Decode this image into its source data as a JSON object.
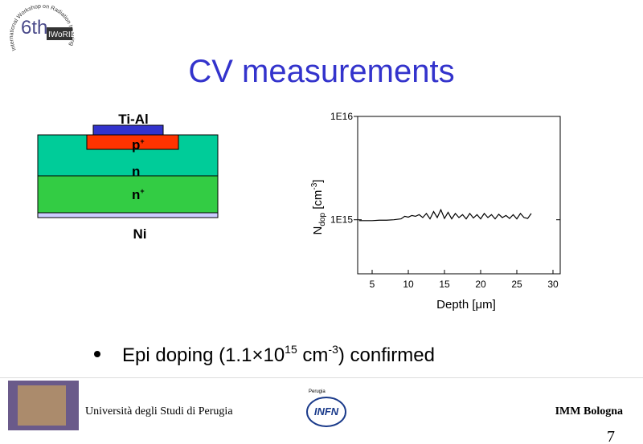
{
  "slide": {
    "logo": {
      "edition": "6th",
      "name": "IWoRID",
      "ring": "International Workshop on Radiation Imaging Detectors"
    },
    "title": "CV measurements",
    "structure": {
      "top": "Ti-Al",
      "p": {
        "main": "p",
        "sup": "+"
      },
      "n": "n",
      "nplus": {
        "main": "n",
        "sup": "+"
      },
      "bottom": "Ni"
    },
    "bullet": {
      "a": "Epi doping (1.1",
      "times": "×",
      "b": "10",
      "exp": "15",
      "c": " cm",
      "unit_exp": "-3",
      "d": ") confirmed"
    },
    "footer": {
      "left": "Università degli Studi di Perugia",
      "infn_city": "Perugia",
      "infn": "INFN",
      "right": "IMM Bologna",
      "page": "7"
    }
  },
  "chart_data": {
    "type": "line",
    "xlabel": {
      "main": "Depth [",
      "mu": "μm",
      "close": "]"
    },
    "ylabel": {
      "main": "N",
      "sub": "dop",
      "unit": " [cm",
      "sup": "-3",
      "close": "]"
    },
    "x": [
      3.2,
      4,
      5,
      6,
      7,
      8,
      9,
      9.5,
      10,
      10.5,
      11,
      11.5,
      12,
      12.5,
      13,
      13.5,
      14,
      14.5,
      15,
      15.5,
      16,
      16.5,
      17,
      17.5,
      18,
      18.5,
      19,
      19.5,
      20,
      20.5,
      21,
      21.5,
      22,
      22.5,
      23,
      23.5,
      24,
      24.5,
      25,
      25.5,
      26,
      26.5,
      27
    ],
    "values": [
      980000000000000.0,
      980000000000000.0,
      980000000000000.0,
      990000000000000.0,
      990000000000000.0,
      1000000000000000.0,
      1020000000000000.0,
      1080000000000000.0,
      1060000000000000.0,
      1100000000000000.0,
      1080000000000000.0,
      1120000000000000.0,
      1050000000000000.0,
      1150000000000000.0,
      1020000000000000.0,
      1200000000000000.0,
      1050000000000000.0,
      1250000000000000.0,
      1030000000000000.0,
      1180000000000000.0,
      1020000000000000.0,
      1150000000000000.0,
      1050000000000000.0,
      1120000000000000.0,
      1020000000000000.0,
      1150000000000000.0,
      1040000000000000.0,
      1120000000000000.0,
      1020000000000000.0,
      1150000000000000.0,
      1050000000000000.0,
      1120000000000000.0,
      1020000000000000.0,
      1130000000000000.0,
      1050000000000000.0,
      1100000000000000.0,
      1030000000000000.0,
      1120000000000000.0,
      1020000000000000.0,
      1150000000000000.0,
      1050000000000000.0,
      1030000000000000.0,
      1150000000000000.0
    ],
    "color": "#000000",
    "xlim": [
      3,
      31
    ],
    "ylim": [
      300000000000000.0,
      1e+16
    ],
    "log_y": true,
    "xticks": [
      5,
      10,
      15,
      20,
      25,
      30
    ],
    "yticks": [
      {
        "value": 1000000000000000.0,
        "label": "1E15"
      },
      {
        "value": 1e+16,
        "label": "1E16"
      }
    ]
  }
}
